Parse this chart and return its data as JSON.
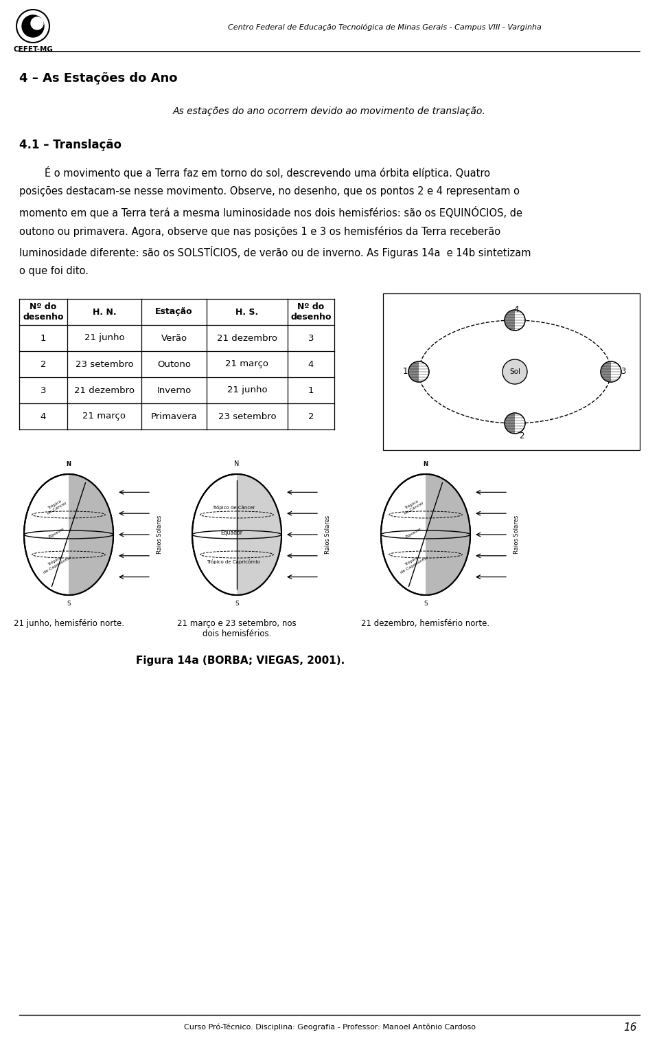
{
  "bg_color": "#ffffff",
  "header_logo_text": "CEFET-MG",
  "header_title": "Centro Federal de Educação Tecnológica de Minas Gerais - Campus VIII - Varginha",
  "section_title": "4 – As Estações do Ano",
  "italic_line": "As estações do ano ocorrem devido ao movimento de translação.",
  "subsection_title": "4.1 – Translação",
  "para_lines": [
    "        É o movimento que a Terra faz em torno do sol, descrevendo uma órbita elíptica. Quatro",
    "posições destacam-se nesse movimento. Observe, no desenho, que os pontos 2 e 4 representam o",
    "momento em que a Terra terá a mesma luminosidade nos dois hemisférios: são os EQUINÓCIOS, de",
    "outono ou primavera. Agora, observe que nas posições 1 e 3 os hemisférios da Terra receberão",
    "luminosidade diferente: são os SOLSTÍCIOS, de verão ou de inverno. As Figuras 14a  e 14b sintetizam",
    "o que foi dito."
  ],
  "table_headers": [
    "Nº do\ndesenho",
    "H. N.",
    "Estação",
    "H. S.",
    "Nº do\ndesenho"
  ],
  "table_rows": [
    [
      "1",
      "21 junho",
      "Verão",
      "21 dezembro",
      "3"
    ],
    [
      "2",
      "23 setembro",
      "Outono",
      "21 março",
      "4"
    ],
    [
      "3",
      "21 dezembro",
      "Inverno",
      "21 junho",
      "1"
    ],
    [
      "4",
      "21 março",
      "Primavera",
      "23 setembro",
      "2"
    ]
  ],
  "sublabels": [
    "21 junho, hemisfério norte.",
    "21 março e 23 setembro, nos\ndois hemisférios.",
    "21 dezembro, hemisfério norte."
  ],
  "fig_caption": "Figura 14a (BORBA; VIEGAS, 2001).",
  "footer_text": "Curso Pró-Técnico. Disciplina: Geografia - Professor: Manoel Antônio Cardoso",
  "footer_page": "16"
}
